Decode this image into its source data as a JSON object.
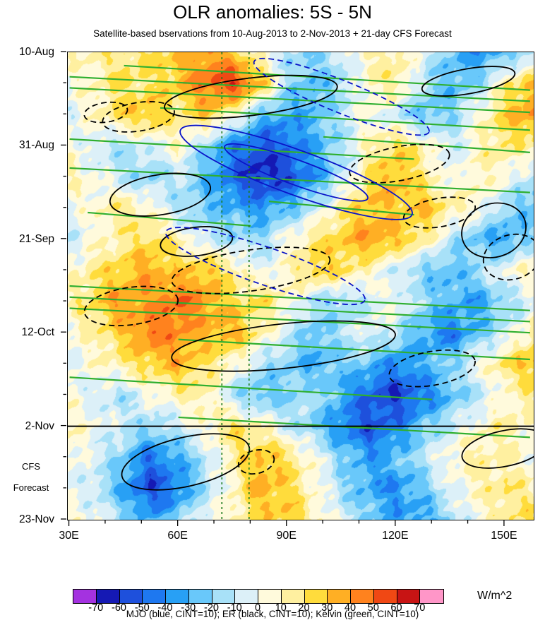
{
  "chart_data": {
    "type": "heatmap",
    "title": "OLR anomalies: 5S - 5N",
    "subtitle": "Satellite-based bservations from 10-Aug-2013 to 2-Nov-2013 + 21-day CFS Forecast",
    "units": "W/m^2",
    "legend": "MJO (blue, CINT=10); ER (black, CINT=10); Kelvin (green, CINT=10)",
    "cfs_label": [
      "CFS",
      "Forecast"
    ],
    "x_axis": {
      "lon_min": 29.5,
      "lon_max": 158,
      "tick_lons": [
        30,
        60,
        90,
        120,
        150
      ],
      "tick_labels": [
        "30E",
        "60E",
        "90E",
        "120E",
        "150E"
      ],
      "minor_step": 10
    },
    "y_axis": {
      "day_min": 0,
      "day_max": 105,
      "tick_days": [
        0,
        21,
        42,
        63,
        84,
        105
      ],
      "tick_labels": [
        "10-Aug",
        "31-Aug",
        "21-Sep",
        "12-Oct",
        "2-Nov",
        "23-Nov"
      ],
      "minor_step": 7
    },
    "forecast_start_day": 84,
    "colorbar": {
      "levels": [
        -70,
        -60,
        -50,
        -40,
        -30,
        -20,
        -10,
        0,
        10,
        20,
        30,
        40,
        50,
        60,
        70
      ],
      "labels": [
        "-70",
        "-60",
        "-50",
        "-40",
        "-30",
        "-20",
        "-10",
        "0",
        "10",
        "20",
        "30",
        "40",
        "50",
        "60",
        "70"
      ],
      "colors": [
        "#A432E0",
        "#1519B4",
        "#1E50DC",
        "#1E78F0",
        "#28A0F5",
        "#69C8FA",
        "#A8E1F8",
        "#DCF0F8",
        "#FFFADC",
        "#FFF0A0",
        "#FFDC3C",
        "#FFAF24",
        "#FF821E",
        "#F04814",
        "#C81414",
        "#FF96C8"
      ]
    },
    "grid": {
      "lons": [
        30,
        37.5,
        45,
        52.5,
        60,
        67.5,
        75,
        82.5,
        90,
        97.5,
        105,
        112.5,
        120,
        127.5,
        135,
        142.5,
        150,
        157.5
      ],
      "days": [
        0,
        7,
        14,
        21,
        28,
        35,
        42,
        49,
        56,
        63,
        70,
        77,
        84,
        91,
        98,
        105
      ],
      "values": [
        [
          8,
          12,
          18,
          22,
          28,
          38,
          30,
          5,
          -12,
          -18,
          -8,
          12,
          15,
          -5,
          -25,
          -38,
          -28,
          -15
        ],
        [
          2,
          10,
          22,
          18,
          30,
          48,
          60,
          35,
          -15,
          -30,
          -15,
          8,
          18,
          -12,
          -30,
          -18,
          15,
          32
        ],
        [
          -5,
          8,
          25,
          32,
          15,
          28,
          10,
          -25,
          -35,
          -28,
          -12,
          5,
          -10,
          -28,
          -20,
          5,
          28,
          40
        ],
        [
          6,
          -8,
          -15,
          -5,
          8,
          -18,
          -42,
          -55,
          -48,
          -32,
          -15,
          10,
          25,
          12,
          -10,
          8,
          20,
          12
        ],
        [
          12,
          2,
          -12,
          -22,
          -8,
          -28,
          -48,
          -65,
          -58,
          -38,
          -12,
          22,
          35,
          18,
          -2,
          12,
          2,
          -12
        ],
        [
          -2,
          8,
          18,
          6,
          -14,
          -24,
          -30,
          -38,
          -28,
          -8,
          15,
          32,
          28,
          32,
          15,
          5,
          -18,
          -28
        ],
        [
          -10,
          4,
          14,
          24,
          12,
          -8,
          -14,
          -18,
          2,
          18,
          28,
          40,
          30,
          18,
          -12,
          -28,
          -35,
          -18
        ],
        [
          5,
          18,
          28,
          38,
          26,
          32,
          18,
          -4,
          8,
          28,
          22,
          8,
          -8,
          -22,
          -30,
          -14,
          2,
          12
        ],
        [
          10,
          24,
          42,
          36,
          52,
          40,
          22,
          24,
          8,
          -12,
          -20,
          -8,
          4,
          -18,
          -28,
          -36,
          -18,
          -4
        ],
        [
          2,
          14,
          28,
          48,
          42,
          32,
          36,
          14,
          -6,
          -26,
          -14,
          2,
          -12,
          -32,
          -46,
          -26,
          -8,
          14
        ],
        [
          -4,
          6,
          16,
          26,
          34,
          20,
          10,
          -12,
          -22,
          -32,
          -22,
          -26,
          -42,
          -30,
          -18,
          2,
          22,
          32
        ],
        [
          6,
          -8,
          -14,
          2,
          10,
          16,
          -14,
          -28,
          -22,
          -12,
          -32,
          -52,
          -60,
          -45,
          -28,
          -12,
          6,
          16
        ],
        [
          10,
          2,
          -8,
          -18,
          -8,
          6,
          22,
          12,
          -8,
          -22,
          -42,
          -55,
          -44,
          -24,
          -8,
          6,
          16,
          6
        ],
        [
          4,
          -6,
          -22,
          -46,
          -32,
          -12,
          14,
          32,
          22,
          2,
          -20,
          -36,
          -26,
          -12,
          6,
          14,
          10,
          2
        ],
        [
          0,
          -10,
          -32,
          -58,
          -42,
          -16,
          6,
          36,
          26,
          6,
          -16,
          -32,
          -42,
          -22,
          -2,
          10,
          20,
          12
        ],
        [
          6,
          0,
          -16,
          -32,
          -22,
          0,
          12,
          22,
          30,
          12,
          -6,
          -22,
          -32,
          -36,
          -16,
          4,
          16,
          22
        ]
      ]
    },
    "overlays": {
      "mjo_color": "#0A14C8",
      "er_color": "#000000",
      "kelvin_color": "#2FAF2F",
      "vertical_dash_color": "#1B7A1B",
      "vertical_dashed_lons": [
        72,
        79.5
      ],
      "mjo_ellipses": [
        [
          92.5,
          27,
          34,
          5.0,
          20,
          0
        ],
        [
          92.5,
          27,
          21,
          2.8,
          20,
          0
        ],
        [
          105,
          10,
          26,
          3.6,
          22,
          1
        ],
        [
          84,
          48,
          29,
          4.2,
          19,
          1
        ]
      ],
      "er_ellipses": [
        [
          80,
          10,
          24,
          4.2,
          -7,
          0
        ],
        [
          140,
          6.5,
          13,
          2.8,
          -10,
          0
        ],
        [
          55,
          32,
          14,
          4.5,
          -9,
          0
        ],
        [
          65,
          42.5,
          10,
          3.2,
          -7,
          0
        ],
        [
          147,
          40,
          9,
          6.0,
          -18,
          0
        ],
        [
          89,
          66,
          31,
          5.0,
          -6,
          0
        ],
        [
          62,
          92,
          18,
          5.5,
          -13,
          0
        ],
        [
          150,
          89,
          12,
          4.0,
          -12,
          0
        ],
        [
          49,
          14.5,
          10,
          3.2,
          -9,
          1
        ],
        [
          40,
          13.5,
          6,
          2.2,
          -8,
          1
        ],
        [
          121,
          25,
          14,
          3.8,
          -11,
          1
        ],
        [
          132,
          36,
          10,
          3.2,
          -10,
          1
        ],
        [
          80,
          49,
          22,
          4.6,
          -8,
          1
        ],
        [
          47,
          57,
          13,
          4.2,
          -8,
          1
        ],
        [
          130,
          71,
          12,
          3.8,
          -10,
          1
        ],
        [
          152,
          46,
          8,
          5.0,
          -16,
          1
        ],
        [
          81.5,
          92,
          5,
          2.6,
          -14,
          1
        ]
      ],
      "kelvin_lines": [
        [
          30,
          5.5,
          157,
          11
        ],
        [
          45,
          3,
          157,
          8.5
        ],
        [
          30,
          8,
          157,
          13.5
        ],
        [
          55,
          12.5,
          157,
          17.5
        ],
        [
          30,
          19.5,
          125,
          24
        ],
        [
          100,
          19,
          157,
          22.5
        ],
        [
          30,
          26,
          157,
          31.5
        ],
        [
          35,
          36,
          80,
          39
        ],
        [
          85,
          33.5,
          125,
          36.5
        ],
        [
          30,
          52.5,
          157,
          58
        ],
        [
          30,
          55,
          157,
          60.5
        ],
        [
          30,
          57.5,
          157,
          63
        ],
        [
          60,
          64.5,
          157,
          69
        ],
        [
          30,
          73,
          130,
          78
        ],
        [
          60,
          82,
          157,
          86.5
        ]
      ]
    }
  }
}
